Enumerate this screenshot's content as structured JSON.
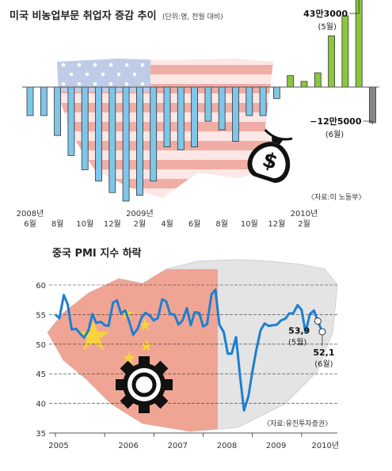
{
  "chart_data": [
    {
      "type": "bar",
      "title": "미국 비농업부문 취업자 증감 추이",
      "subtitle": "(단위:명, 전월 대비)",
      "source": "〈자료:미 노동부〉",
      "x_tick_labels": [
        {
          "index": 0,
          "lines": [
            "2008년",
            "6월"
          ]
        },
        {
          "index": 2,
          "lines": [
            "8월"
          ]
        },
        {
          "index": 4,
          "lines": [
            "10월"
          ]
        },
        {
          "index": 6,
          "lines": [
            "12월"
          ]
        },
        {
          "index": 8,
          "lines": [
            "2009년",
            "2월"
          ]
        },
        {
          "index": 10,
          "lines": [
            "4월"
          ]
        },
        {
          "index": 12,
          "lines": [
            "6월"
          ]
        },
        {
          "index": 14,
          "lines": [
            "8월"
          ]
        },
        {
          "index": 16,
          "lines": [
            "10월"
          ]
        },
        {
          "index": 18,
          "lines": [
            "12월"
          ]
        },
        {
          "index": 20,
          "lines": [
            "2010년",
            "2월"
          ]
        }
      ],
      "values": [
        -10,
        -10,
        -17,
        -24,
        -29,
        -33,
        -37,
        -40,
        -38,
        -33,
        -21,
        -22,
        -21,
        -12,
        -15,
        -19,
        -10,
        -10,
        -4,
        4,
        2,
        5,
        18,
        25,
        43.3,
        -12.5
      ],
      "colors": {
        "negative": "#7fc6e8",
        "positive": "#8cc63f",
        "last": "#888888"
      },
      "annotations": [
        {
          "index": 24,
          "value_label": "43만3000",
          "period_label": "(5월)"
        },
        {
          "index": 25,
          "value_label": "−12만5000",
          "period_label": "(6월)"
        }
      ],
      "icon": "money-bag-icon"
    },
    {
      "type": "line",
      "title": "중국 PMI 지수 하락",
      "source": "〈자료:유진투자증권〉",
      "ylim": [
        35,
        60
      ],
      "y_ticks": [
        35,
        40,
        45,
        50,
        55,
        60
      ],
      "grid": true,
      "x_tick_labels": [
        "2005",
        "2006",
        "2007",
        "2008",
        "2009",
        "2010년"
      ],
      "x_range": [
        2005.0,
        2010.55
      ],
      "x_tick_positions": [
        2005,
        2006,
        2007,
        2008,
        2009,
        2010
      ],
      "series": [
        {
          "color": "#1e7fd0",
          "points": [
            [
              2005.0,
              55.0
            ],
            [
              2005.08,
              54.4
            ],
            [
              2005.17,
              58.3
            ],
            [
              2005.25,
              56.7
            ],
            [
              2005.33,
              52.5
            ],
            [
              2005.42,
              52.6
            ],
            [
              2005.5,
              51.8
            ],
            [
              2005.58,
              51.1
            ],
            [
              2005.67,
              52.3
            ],
            [
              2005.75,
              55.1
            ],
            [
              2005.83,
              53.6
            ],
            [
              2005.92,
              53.8
            ],
            [
              2006.0,
              53.2
            ],
            [
              2006.08,
              53.1
            ],
            [
              2006.17,
              57.0
            ],
            [
              2006.25,
              57.4
            ],
            [
              2006.33,
              55.2
            ],
            [
              2006.42,
              55.7
            ],
            [
              2006.5,
              53.8
            ],
            [
              2006.58,
              51.6
            ],
            [
              2006.67,
              52.6
            ],
            [
              2006.75,
              54.5
            ],
            [
              2006.83,
              55.3
            ],
            [
              2006.92,
              54.8
            ],
            [
              2007.0,
              54.0
            ],
            [
              2007.08,
              54.4
            ],
            [
              2007.17,
              57.6
            ],
            [
              2007.25,
              57.2
            ],
            [
              2007.33,
              55.1
            ],
            [
              2007.42,
              55.0
            ],
            [
              2007.5,
              53.3
            ],
            [
              2007.58,
              54.0
            ],
            [
              2007.67,
              56.1
            ],
            [
              2007.75,
              53.2
            ],
            [
              2007.83,
              55.4
            ],
            [
              2007.92,
              55.3
            ],
            [
              2008.0,
              53.0
            ],
            [
              2008.08,
              53.4
            ],
            [
              2008.17,
              58.4
            ],
            [
              2008.25,
              59.2
            ],
            [
              2008.33,
              53.3
            ],
            [
              2008.42,
              52.0
            ],
            [
              2008.5,
              48.4
            ],
            [
              2008.58,
              48.4
            ],
            [
              2008.67,
              51.2
            ],
            [
              2008.75,
              44.6
            ],
            [
              2008.83,
              38.8
            ],
            [
              2008.92,
              41.2
            ],
            [
              2009.0,
              45.3
            ],
            [
              2009.08,
              49.0
            ],
            [
              2009.17,
              52.4
            ],
            [
              2009.25,
              53.5
            ],
            [
              2009.33,
              53.1
            ],
            [
              2009.42,
              53.2
            ],
            [
              2009.5,
              53.3
            ],
            [
              2009.58,
              54.0
            ],
            [
              2009.67,
              54.3
            ],
            [
              2009.75,
              55.2
            ],
            [
              2009.83,
              55.2
            ],
            [
              2009.92,
              56.6
            ],
            [
              2010.0,
              55.8
            ],
            [
              2010.08,
              52.0
            ],
            [
              2010.17,
              55.1
            ],
            [
              2010.25,
              55.7
            ],
            [
              2010.33,
              53.9
            ],
            [
              2010.42,
              52.1
            ]
          ]
        }
      ],
      "annotations": [
        {
          "x": 2010.33,
          "value_label": "53,9",
          "period_label": "(5월)"
        },
        {
          "x": 2010.42,
          "value_label": "52,1",
          "period_label": "(6월)"
        }
      ],
      "icon": "gear-icon"
    }
  ]
}
